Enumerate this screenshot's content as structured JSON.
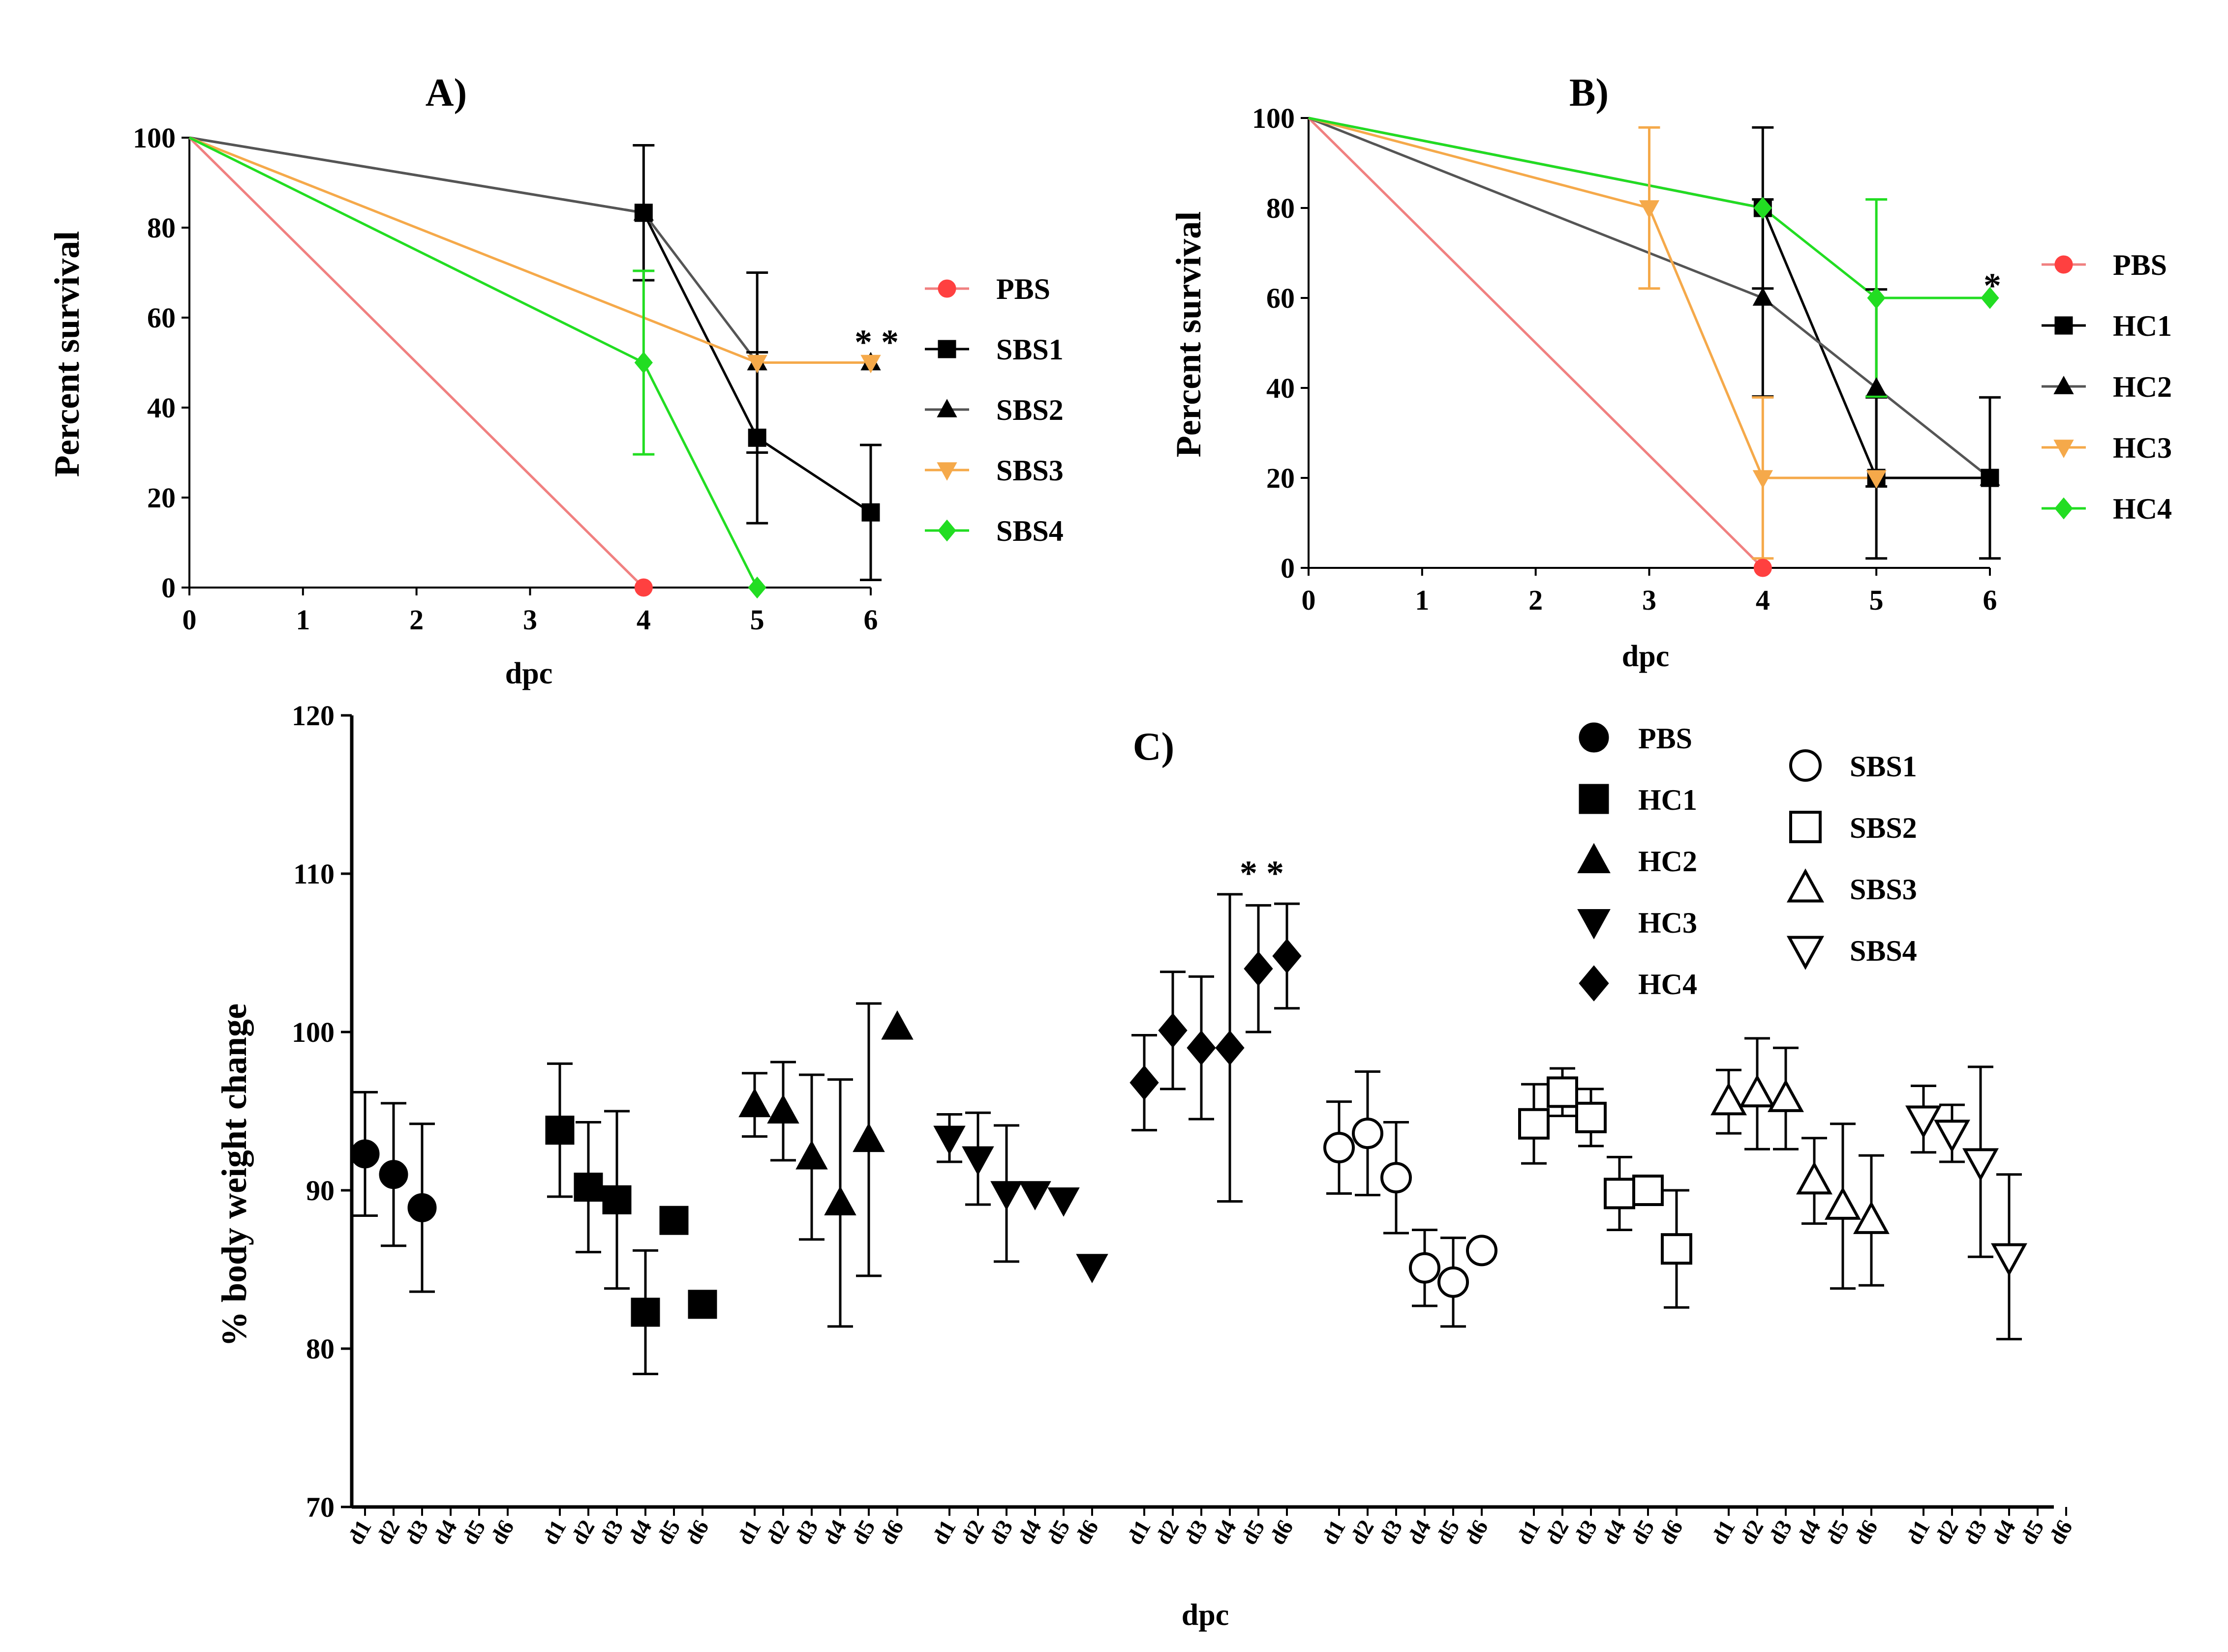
{
  "chart_data": [
    {
      "type": "line",
      "title": "A)",
      "xlabel": "dpc",
      "ylabel": "Percent survival",
      "xlim": [
        0,
        6
      ],
      "ylim": [
        0,
        100
      ],
      "xticks": [
        "0",
        "1",
        "2",
        "3",
        "4",
        "5",
        "6"
      ],
      "yticks": [
        "0",
        "20",
        "40",
        "60",
        "80",
        "100"
      ],
      "annotation": "* *",
      "legend": "right",
      "series": [
        {
          "name": "PBS",
          "color": "#f08080",
          "marker": "circle",
          "marker_color": "#ff4040",
          "x": [
            0,
            4
          ],
          "y": [
            100,
            0
          ],
          "err": [
            null,
            null
          ]
        },
        {
          "name": "SBS1",
          "color": "#000000",
          "marker": "square",
          "marker_color": "#000000",
          "x": [
            0,
            4,
            5,
            6
          ],
          "y": [
            100,
            83.3,
            33.3,
            16.7
          ],
          "err": [
            null,
            15,
            19,
            15
          ]
        },
        {
          "name": "SBS2",
          "color": "#555555",
          "marker": "triangle-up",
          "marker_color": "#000000",
          "x": [
            0,
            4,
            5,
            6
          ],
          "y": [
            100,
            83.3,
            50,
            50
          ],
          "err": [
            null,
            null,
            20,
            null
          ]
        },
        {
          "name": "SBS3",
          "color": "#f5a94a",
          "marker": "triangle-down",
          "marker_color": "#f5a94a",
          "x": [
            0,
            5,
            6
          ],
          "y": [
            100,
            50,
            50
          ],
          "err": [
            null,
            null,
            null
          ]
        },
        {
          "name": "SBS4",
          "color": "#22dd22",
          "marker": "diamond",
          "marker_color": "#22dd22",
          "x": [
            0,
            4,
            5
          ],
          "y": [
            100,
            50,
            0
          ],
          "err": [
            null,
            20.4,
            null
          ]
        }
      ]
    },
    {
      "type": "line",
      "title": "B)",
      "xlabel": "dpc",
      "ylabel": "Percent survival",
      "xlim": [
        0,
        6
      ],
      "ylim": [
        0,
        100
      ],
      "xticks": [
        "0",
        "1",
        "2",
        "3",
        "4",
        "5",
        "6"
      ],
      "yticks": [
        "0",
        "20",
        "40",
        "60",
        "80",
        "100"
      ],
      "annotation": "*",
      "legend": "right",
      "series": [
        {
          "name": "PBS",
          "color": "#f08080",
          "marker": "circle",
          "marker_color": "#ff4040",
          "x": [
            0,
            4
          ],
          "y": [
            100,
            0
          ],
          "err": [
            null,
            null
          ]
        },
        {
          "name": "HC1",
          "color": "#000000",
          "marker": "square",
          "marker_color": "#000000",
          "x": [
            0,
            4,
            5,
            6
          ],
          "y": [
            100,
            80,
            20,
            20
          ],
          "err": [
            null,
            17.9,
            17.9,
            17.9
          ]
        },
        {
          "name": "HC2",
          "color": "#555555",
          "marker": "triangle-up",
          "marker_color": "#000000",
          "x": [
            0,
            4,
            5,
            6
          ],
          "y": [
            100,
            60,
            40,
            20
          ],
          "err": [
            null,
            21.9,
            21.9,
            null
          ]
        },
        {
          "name": "HC3",
          "color": "#f5a94a",
          "marker": "triangle-down",
          "marker_color": "#f5a94a",
          "x": [
            0,
            3,
            4,
            5
          ],
          "y": [
            100,
            80,
            20,
            20
          ],
          "err": [
            null,
            17.9,
            17.9,
            null
          ]
        },
        {
          "name": "HC4",
          "color": "#22dd22",
          "marker": "diamond",
          "marker_color": "#22dd22",
          "x": [
            0,
            4,
            5,
            6
          ],
          "y": [
            100,
            80,
            60,
            60
          ],
          "err": [
            null,
            null,
            21.9,
            null
          ]
        }
      ]
    },
    {
      "type": "scatter",
      "title": "C)",
      "xlabel": "dpc",
      "ylabel": "% body weight change",
      "ylim": [
        70,
        120
      ],
      "yticks": [
        "70",
        "80",
        "90",
        "100",
        "110",
        "120"
      ],
      "day_labels": [
        "d1",
        "d2",
        "d3",
        "d4",
        "d5",
        "d6"
      ],
      "annotation": "* *",
      "legend": "top-right",
      "groups": [
        {
          "name": "PBS",
          "marker": "circle",
          "filled": true,
          "mean": [
            92.3,
            91.0,
            88.9,
            null,
            null,
            null
          ],
          "err": [
            3.9,
            4.5,
            5.3,
            null,
            null,
            null
          ]
        },
        {
          "name": "HC1",
          "marker": "square",
          "filled": true,
          "mean": [
            93.8,
            90.2,
            89.4,
            82.3,
            88.1,
            82.8
          ],
          "err": [
            4.2,
            4.1,
            5.6,
            3.9,
            null,
            null
          ]
        },
        {
          "name": "HC2",
          "marker": "triangle-up",
          "filled": true,
          "mean": [
            95.4,
            95.0,
            92.1,
            89.2,
            93.2,
            100.3
          ],
          "err": [
            2.0,
            3.1,
            5.2,
            7.8,
            8.6,
            null
          ]
        },
        {
          "name": "HC3",
          "marker": "triangle-down",
          "filled": true,
          "mean": [
            93.3,
            92.0,
            89.8,
            89.8,
            89.4,
            85.2
          ],
          "err": [
            1.5,
            2.9,
            4.3,
            null,
            null,
            null
          ]
        },
        {
          "name": "HC4",
          "marker": "diamond",
          "filled": true,
          "mean": [
            96.8,
            100.1,
            99.0,
            99.0,
            104.0,
            104.8
          ],
          "err": [
            3.0,
            3.7,
            4.5,
            9.7,
            4.0,
            3.3
          ]
        },
        {
          "name": "SBS1",
          "marker": "circle",
          "filled": false,
          "mean": [
            92.7,
            93.6,
            90.8,
            85.1,
            84.2,
            86.2
          ],
          "err": [
            2.9,
            3.9,
            3.5,
            2.4,
            2.8,
            null
          ]
        },
        {
          "name": "SBS2",
          "marker": "square",
          "filled": false,
          "mean": [
            94.2,
            96.2,
            94.6,
            89.8,
            90.0,
            86.3
          ],
          "err": [
            2.5,
            1.5,
            1.8,
            2.3,
            null,
            3.7
          ]
        },
        {
          "name": "SBS3",
          "marker": "triangle-up",
          "filled": false,
          "mean": [
            95.6,
            96.1,
            95.8,
            90.6,
            89.0,
            88.1
          ],
          "err": [
            2.0,
            3.5,
            3.2,
            2.7,
            5.2,
            4.1
          ]
        },
        {
          "name": "SBS4",
          "marker": "triangle-down",
          "filled": false,
          "mean": [
            94.5,
            93.6,
            91.8,
            85.8,
            null,
            null
          ],
          "err": [
            2.1,
            1.8,
            6.0,
            5.2,
            null,
            null
          ]
        }
      ]
    }
  ]
}
